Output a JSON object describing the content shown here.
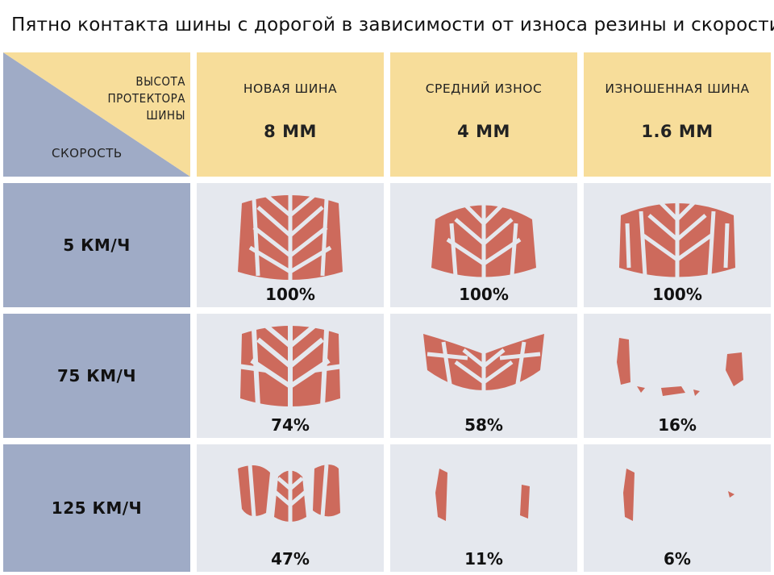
{
  "title": "Пятно контакта шины с дорогой в зависимости от износа резины и скорости",
  "corner": {
    "tread_label_lines": [
      "ВЫСОТА",
      "ПРОТЕКТОРА",
      "ШИНЫ"
    ],
    "speed_label": "СКОРОСТЬ"
  },
  "columns": [
    {
      "name": "НОВАЯ ШИНА",
      "depth": "8 ММ"
    },
    {
      "name": "СРЕДНИЙ ИЗНОС",
      "depth": "4 ММ"
    },
    {
      "name": "ИЗНОШЕННАЯ ШИНА",
      "depth": "1.6 ММ"
    }
  ],
  "rows": [
    {
      "speed": "5 КМ/Ч",
      "values": [
        "100%",
        "100%",
        "100%"
      ]
    },
    {
      "speed": "75 КМ/Ч",
      "values": [
        "74%",
        "58%",
        "16%"
      ]
    },
    {
      "speed": "125 КМ/Ч",
      "values": [
        "47%",
        "11%",
        "6%"
      ]
    }
  ],
  "colors": {
    "header": "#f7dd9a",
    "row_header": "#9fabc6",
    "cell": "#e5e8ee",
    "patch": "#cd6a5c"
  },
  "icons": [
    "tire-contact-patch-icon"
  ]
}
